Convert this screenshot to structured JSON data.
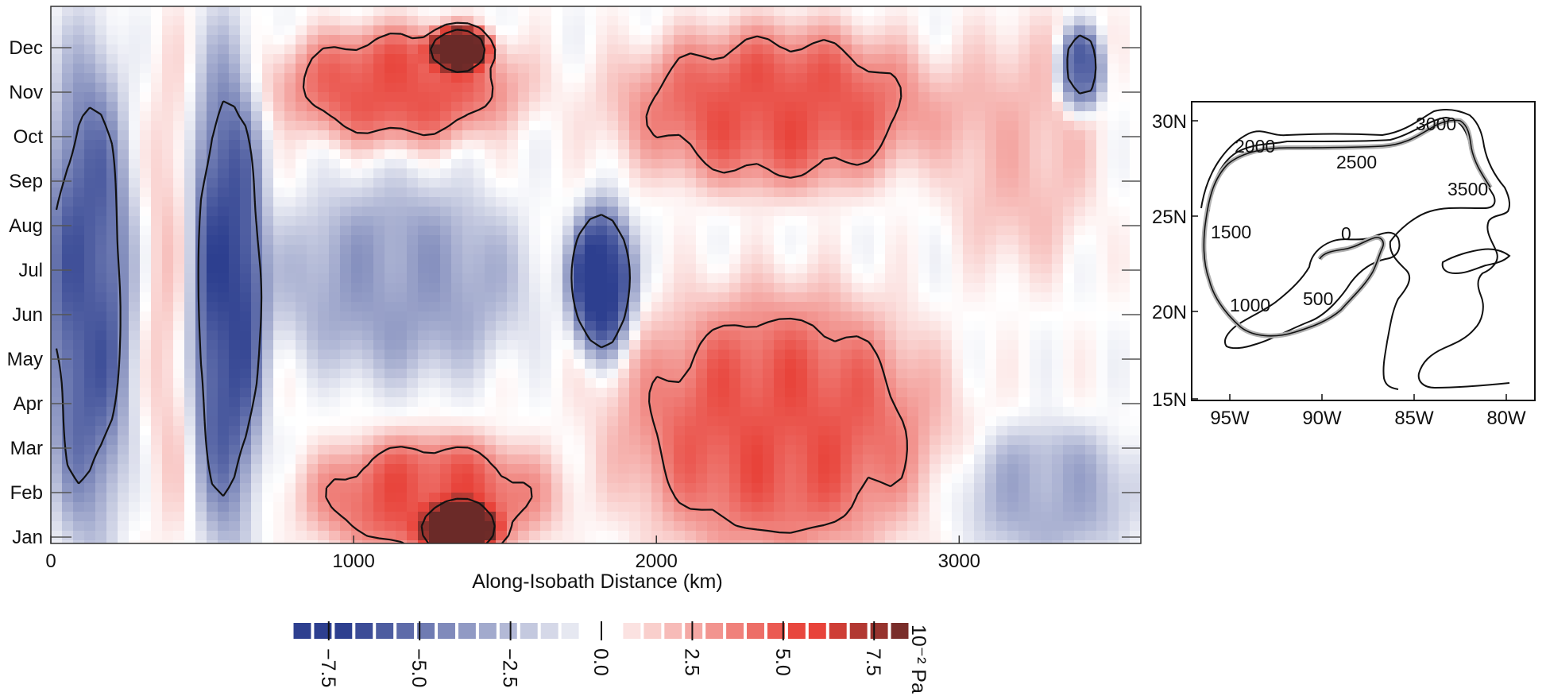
{
  "chart_data": [
    {
      "type": "heatmap",
      "title": "",
      "xlabel": "Along-Isobath Distance (km)",
      "ylabel": "",
      "x_ticks": [
        0,
        1000,
        2000,
        3000
      ],
      "x_tick_labels": [
        "0",
        "1000",
        "2000",
        "3000"
      ],
      "xlim": [
        0,
        3600
      ],
      "y_categories": [
        "Jan",
        "Feb",
        "Mar",
        "Apr",
        "May",
        "Jun",
        "Jul",
        "Aug",
        "Sep",
        "Oct",
        "Nov",
        "Dec"
      ],
      "color_scale": {
        "min": -8.5,
        "max": 8.5,
        "units_label": "10⁻² Pa",
        "tick_values": [
          -7.5,
          -5.0,
          -2.5,
          0.0,
          2.5,
          5.0,
          7.5
        ],
        "tick_labels": [
          "−7.5",
          "−5.0",
          "−2.5",
          "0.0",
          "2.5",
          "5.0",
          "7.5"
        ],
        "negative_color": "#2d3f8f",
        "zero_color": "#ffffff",
        "positive_color": "#e8433a",
        "extreme_positive_color": "#6b2a28"
      },
      "features": [
        {
          "x_center": 120,
          "x_halfwidth": 150,
          "month_from": 1,
          "month_to": 12,
          "value": -6
        },
        {
          "x_center": 400,
          "x_halfwidth": 90,
          "month_from": 1,
          "month_to": 12,
          "value": 1.5
        },
        {
          "x_center": 580,
          "x_halfwidth": 130,
          "month_from": 1,
          "month_to": 12,
          "value": -6.5
        },
        {
          "x_center": 1150,
          "x_halfwidth": 420,
          "month_from": 4.5,
          "month_to": 9,
          "value": -3.5
        },
        {
          "x_center": 1820,
          "x_halfwidth": 110,
          "month_from": 5,
          "month_to": 8.5,
          "value": -7.5
        },
        {
          "x_center": 1150,
          "x_halfwidth": 400,
          "month_from": 9.8,
          "month_to": 12.5,
          "value": 5
        },
        {
          "x_center": 1350,
          "x_halfwidth": 100,
          "month_from": 11.5,
          "month_to": 12.5,
          "value": 8
        },
        {
          "x_center": 1250,
          "x_halfwidth": 400,
          "month_from": 0.5,
          "month_to": 3.3,
          "value": 5
        },
        {
          "x_center": 1350,
          "x_halfwidth": 120,
          "month_from": 0.5,
          "month_to": 1.8,
          "value": 8
        },
        {
          "x_center": 2400,
          "x_halfwidth": 520,
          "month_from": 8.8,
          "month_to": 12.5,
          "value": 5
        },
        {
          "x_center": 2400,
          "x_halfwidth": 520,
          "month_from": 0.5,
          "month_to": 6.5,
          "value": 5
        },
        {
          "x_center": 3200,
          "x_halfwidth": 250,
          "month_from": 7,
          "month_to": 12.5,
          "value": 2
        },
        {
          "x_center": 3400,
          "x_halfwidth": 80,
          "month_from": 10.5,
          "month_to": 12.5,
          "value": -6
        },
        {
          "x_center": 3300,
          "x_halfwidth": 300,
          "month_from": 0.5,
          "month_to": 3.5,
          "value": -3
        }
      ]
    },
    {
      "type": "map",
      "x_tick_labels": [
        "95W",
        "90W",
        "85W",
        "80W"
      ],
      "y_tick_labels": [
        "15N",
        "20N",
        "25N",
        "30N"
      ],
      "isobath_distance_labels": [
        "0",
        "500",
        "1000",
        "1500",
        "2000",
        "2500",
        "3000",
        "3500"
      ],
      "path_color": "#b0b0b0"
    }
  ]
}
